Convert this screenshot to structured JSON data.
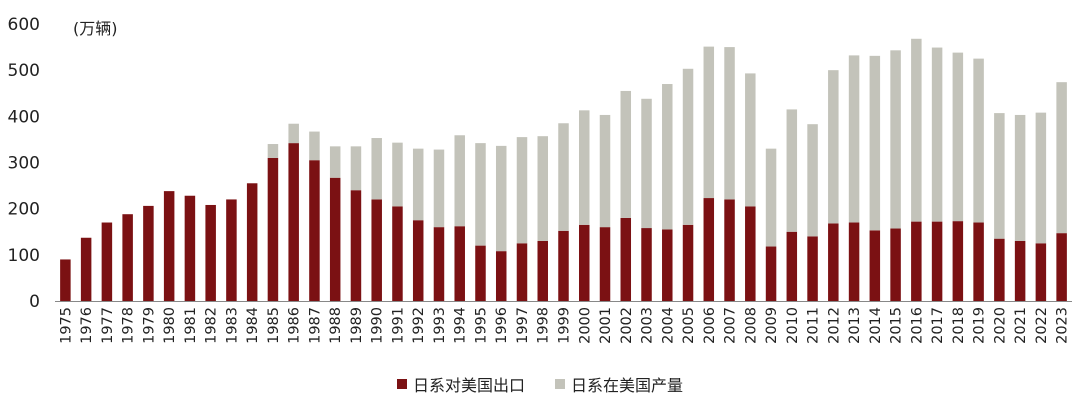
{
  "chart_data": {
    "type": "bar",
    "stacked": true,
    "unit_label": "(万辆)",
    "ylim": [
      0,
      600
    ],
    "yticks": [
      0,
      100,
      200,
      300,
      400,
      500,
      600
    ],
    "categories": [
      "1975",
      "1976",
      "1977",
      "1978",
      "1979",
      "1980",
      "1981",
      "1982",
      "1983",
      "1984",
      "1985",
      "1986",
      "1987",
      "1988",
      "1989",
      "1990",
      "1991",
      "1992",
      "1993",
      "1994",
      "1995",
      "1996",
      "1997",
      "1998",
      "1999",
      "2000",
      "2001",
      "2002",
      "2003",
      "2004",
      "2005",
      "2006",
      "2007",
      "2008",
      "2009",
      "2010",
      "2011",
      "2012",
      "2013",
      "2014",
      "2015",
      "2016",
      "2017",
      "2018",
      "2019",
      "2020",
      "2021",
      "2022",
      "2023"
    ],
    "series": [
      {
        "name": "日系对美国出口",
        "color": "#7B1113",
        "values": [
          90,
          137,
          170,
          188,
          206,
          238,
          228,
          208,
          220,
          255,
          310,
          342,
          305,
          267,
          240,
          220,
          205,
          175,
          160,
          162,
          120,
          108,
          125,
          130,
          152,
          165,
          160,
          180,
          158,
          155,
          165,
          223,
          220,
          205,
          118,
          150,
          140,
          168,
          170,
          153,
          157,
          172,
          172,
          173,
          170,
          135,
          130,
          125,
          147
        ]
      },
      {
        "name": "日系在美国产量",
        "color": "#C3C3BA",
        "values": [
          0,
          0,
          0,
          0,
          0,
          0,
          0,
          0,
          0,
          0,
          30,
          42,
          62,
          68,
          95,
          133,
          138,
          155,
          168,
          197,
          222,
          228,
          230,
          227,
          233,
          248,
          243,
          275,
          280,
          315,
          338,
          328,
          330,
          288,
          212,
          265,
          243,
          332,
          362,
          378,
          386,
          396,
          377,
          365,
          355,
          272,
          273,
          283,
          327
        ]
      }
    ],
    "legend_position": "bottom-center",
    "grid": false
  }
}
